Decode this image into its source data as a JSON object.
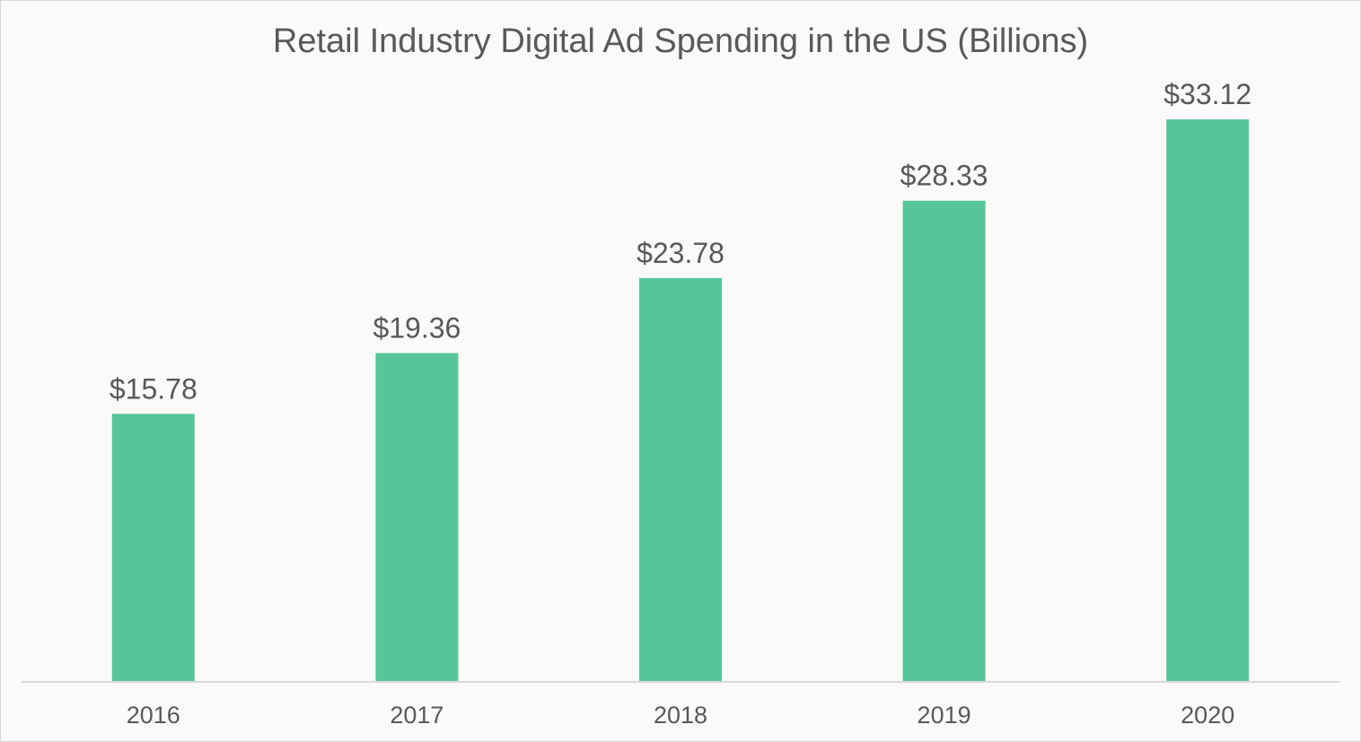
{
  "chart_data": {
    "type": "bar",
    "title": "Retail Industry Digital Ad Spending in the US (Billions)",
    "categories": [
      "2016",
      "2017",
      "2018",
      "2019",
      "2020"
    ],
    "values": [
      15.78,
      19.36,
      23.78,
      28.33,
      33.12
    ],
    "data_labels": [
      "$15.78",
      "$19.36",
      "$23.78",
      "$28.33",
      "$33.12"
    ],
    "xlabel": "",
    "ylabel": "",
    "ylim": [
      0,
      36
    ],
    "grid": false,
    "legend": "none"
  },
  "colors": {
    "bar": "#57c59b",
    "text": "#595959",
    "title": "#595959",
    "axis": "#d9d9d9",
    "background": "#fbfaf8"
  }
}
